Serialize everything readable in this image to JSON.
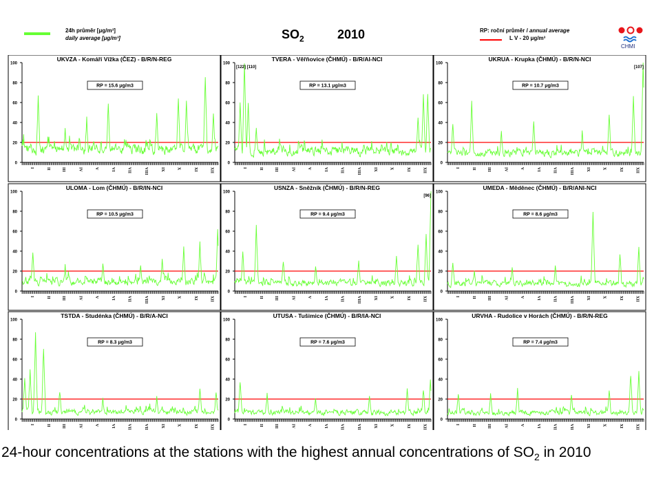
{
  "header": {
    "legend_line1": "24h průměr [μg/m³]",
    "legend_line2": "daily average [μg/m³]",
    "title_main": "SO",
    "title_sub": "2",
    "year": "2010",
    "rp_label": "RP: roční průměr / ",
    "rp_label_en": "annual average",
    "lv_label": "L V   - 20 μg/m³",
    "logo_text": "CHMI",
    "series_color": "#66ff33",
    "lv_color": "#ff0000"
  },
  "caption": {
    "text1": "24-hour concentrations at the stations with the highest annual concentrations of SO",
    "sub": "2",
    "text2": " in 2010"
  },
  "chart_data": [
    {
      "type": "line",
      "title": "UKVZA - Komáří Vížka (ČEZ) - B/R/N-REG",
      "rp_label": "RP = 15.6 μg/m3",
      "mean": 15.6,
      "peaks": [
        [
          30,
          66
        ],
        [
          80,
          35
        ],
        [
          120,
          44
        ],
        [
          160,
          60
        ],
        [
          250,
          50
        ],
        [
          290,
          65
        ],
        [
          305,
          62
        ],
        [
          340,
          86
        ],
        [
          355,
          50
        ]
      ],
      "overflow": ""
    },
    {
      "type": "line",
      "title": "TVERA - Věřňovice (ČHMÚ) - B/R/AI-NCI",
      "rp_label": "RP = 13.1 μg/m3",
      "mean": 13.1,
      "peaks": [
        [
          10,
          60
        ],
        [
          18,
          100
        ],
        [
          25,
          60
        ],
        [
          40,
          35
        ],
        [
          90,
          18
        ],
        [
          200,
          12
        ],
        [
          290,
          22
        ],
        [
          340,
          45
        ],
        [
          350,
          68
        ],
        [
          358,
          70
        ]
      ],
      "overflow": "[122] [110]"
    },
    {
      "type": "line",
      "title": "UKRUA - Krupka (ČHMÚ) - B/R/N-NCI",
      "rp_label": "RP = 10.7 μg/m3",
      "mean": 10.7,
      "peaks": [
        [
          10,
          40
        ],
        [
          45,
          60
        ],
        [
          100,
          32
        ],
        [
          160,
          40
        ],
        [
          250,
          30
        ],
        [
          300,
          48
        ],
        [
          345,
          65
        ],
        [
          363,
          100
        ]
      ],
      "overflow": "[107]"
    },
    {
      "type": "line",
      "title": "ULOMA - Lom (ČHMÚ) - B/R/IN-NCI",
      "rp_label": "RP = 10.5 μg/m3",
      "mean": 10.5,
      "peaks": [
        [
          20,
          40
        ],
        [
          80,
          25
        ],
        [
          150,
          28
        ],
        [
          220,
          25
        ],
        [
          260,
          32
        ],
        [
          300,
          44
        ],
        [
          330,
          48
        ],
        [
          363,
          62
        ]
      ],
      "overflow": ""
    },
    {
      "type": "line",
      "title": "USNZA - Sněžník (ČHMÚ) - B/R/N-REG",
      "rp_label": "RP = 9.4 μg/m3",
      "mean": 9.4,
      "peaks": [
        [
          15,
          40
        ],
        [
          40,
          66
        ],
        [
          90,
          30
        ],
        [
          150,
          25
        ],
        [
          230,
          30
        ],
        [
          300,
          35
        ],
        [
          340,
          48
        ],
        [
          355,
          58
        ],
        [
          364,
          100
        ]
      ],
      "overflow": "[96]"
    },
    {
      "type": "line",
      "title": "UMEDA - Měděnec (ČHMÚ) - B/R/ANI-NCI",
      "rp_label": "RP = 8.6 μg/m3",
      "mean": 8.6,
      "peaks": [
        [
          10,
          30
        ],
        [
          50,
          22
        ],
        [
          120,
          25
        ],
        [
          200,
          25
        ],
        [
          270,
          80
        ],
        [
          320,
          38
        ],
        [
          355,
          44
        ]
      ],
      "overflow": ""
    },
    {
      "type": "line",
      "title": "TSTDA - Studénka (ČHMÚ) - B/R/A-NCI",
      "rp_label": "RP = 8.3 μg/m3",
      "mean": 8.3,
      "peaks": [
        [
          5,
          40
        ],
        [
          15,
          50
        ],
        [
          25,
          85
        ],
        [
          40,
          72
        ],
        [
          70,
          28
        ],
        [
          150,
          20
        ],
        [
          250,
          22
        ],
        [
          330,
          31
        ],
        [
          360,
          28
        ]
      ],
      "overflow": ""
    },
    {
      "type": "line",
      "title": "UTUSA - Tušimice (ČHMÚ) - B/R/IA-NCI",
      "rp_label": "RP = 7.6 μg/m3",
      "mean": 7.6,
      "peaks": [
        [
          10,
          38
        ],
        [
          60,
          25
        ],
        [
          150,
          20
        ],
        [
          250,
          25
        ],
        [
          320,
          30
        ],
        [
          350,
          30
        ],
        [
          363,
          40
        ]
      ],
      "overflow": ""
    },
    {
      "type": "line",
      "title": "URVHA - Rudolice v Horách (ČHMÚ) - B/R/N-REG",
      "rp_label": "RP = 7.4 μg/m3",
      "mean": 7.4,
      "peaks": [
        [
          20,
          26
        ],
        [
          80,
          25
        ],
        [
          130,
          30
        ],
        [
          230,
          25
        ],
        [
          300,
          30
        ],
        [
          340,
          45
        ],
        [
          355,
          47
        ]
      ],
      "overflow": ""
    }
  ],
  "axis": {
    "yticks": [
      0,
      20,
      40,
      60,
      80,
      100
    ],
    "ylim": [
      0,
      100
    ],
    "months": [
      "I",
      "II",
      "III",
      "IV",
      "V",
      "VI",
      "VII",
      "VIII",
      "IX",
      "X",
      "XI",
      "XII"
    ],
    "limit_value": 20
  }
}
